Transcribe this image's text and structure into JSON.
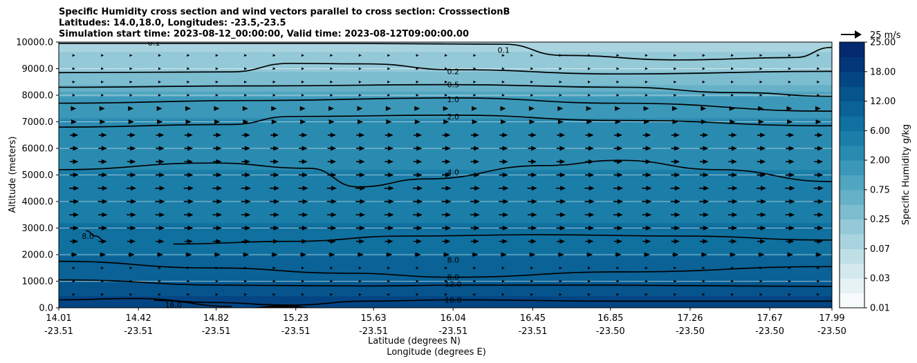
{
  "chart_data": {
    "type": "contourf-with-vectors",
    "title_lines": [
      "Specific Humidity cross section and wind vectors parallel to cross section: CrosssectionB",
      "Latitudes: 14.0,18.0, Longitudes: -23.5,-23.5",
      "Simulation start time: 2023-08-12_00:00:00, Valid time: 2023-08-12T09:00:00.00"
    ],
    "ylabel": "Altitude (meters)",
    "xlabel_lat": "Latitude (degrees N)",
    "xlabel_lon": "Longitude (degrees E)",
    "ylim": [
      0,
      10000
    ],
    "yticks": [
      "0.0",
      "1000.0",
      "2000.0",
      "3000.0",
      "4000.0",
      "5000.0",
      "6000.0",
      "7000.0",
      "8000.0",
      "9000.0",
      "10000.0"
    ],
    "xlim": [
      14.01,
      17.99
    ],
    "xticks": [
      {
        "lat": "14.01",
        "lon": "-23.51"
      },
      {
        "lat": "14.42",
        "lon": "-23.51"
      },
      {
        "lat": "14.82",
        "lon": "-23.51"
      },
      {
        "lat": "15.23",
        "lon": "-23.51"
      },
      {
        "lat": "15.63",
        "lon": "-23.51"
      },
      {
        "lat": "16.04",
        "lon": "-23.51"
      },
      {
        "lat": "16.45",
        "lon": "-23.51"
      },
      {
        "lat": "16.85",
        "lon": "-23.50"
      },
      {
        "lat": "17.26",
        "lon": "-23.50"
      },
      {
        "lat": "17.67",
        "lon": "-23.50"
      },
      {
        "lat": "17.99",
        "lon": "-23.50"
      }
    ],
    "colorbar": {
      "label": "Specific Humidity g/kg",
      "levels": [
        0.01,
        0.02,
        0.03,
        0.05,
        0.07,
        0.1,
        0.25,
        0.5,
        0.75,
        1.0,
        2.0,
        4.0,
        6.0,
        8.0,
        12.0,
        15.0,
        18.0,
        22.0,
        25.0
      ],
      "tick_labels": [
        "0.01",
        "0.03",
        "0.07",
        "0.25",
        "0.75",
        "2.00",
        "6.00",
        "12.00",
        "18.00",
        "25.00"
      ],
      "colors": [
        "#f7fbfc",
        "#e6f2f4",
        "#d3e9ee",
        "#bfdfe7",
        "#a9d4df",
        "#94c9d8",
        "#7dbdd0",
        "#66b1c8",
        "#50a5c0",
        "#3c98b8",
        "#2a8bb0",
        "#1b7ea8",
        "#10709f",
        "#0a6296",
        "#06548c",
        "#044583",
        "#033779",
        "#032a6f"
      ]
    },
    "humidity_profile": [
      {
        "alt": 0,
        "q": 18.0
      },
      {
        "alt": 300,
        "q": 16.0
      },
      {
        "alt": 800,
        "q": 13.0
      },
      {
        "alt": 1500,
        "q": 9.0
      },
      {
        "alt": 2500,
        "q": 7.0
      },
      {
        "alt": 4000,
        "q": 5.0
      },
      {
        "alt": 5200,
        "q": 4.0
      },
      {
        "alt": 6000,
        "q": 3.2
      },
      {
        "alt": 7000,
        "q": 2.2
      },
      {
        "alt": 7800,
        "q": 1.3
      },
      {
        "alt": 8300,
        "q": 0.6
      },
      {
        "alt": 8900,
        "q": 0.25
      },
      {
        "alt": 9500,
        "q": 0.12
      },
      {
        "alt": 10000,
        "q": 0.07
      }
    ],
    "contours": [
      {
        "label": "0.1",
        "points": [
          [
            14.01,
            9950
          ],
          [
            15.5,
            9950
          ],
          [
            16.0,
            9930
          ],
          [
            16.3,
            9920
          ]
        ],
        "label_at": [
          14.5,
          9980
        ]
      },
      {
        "label": "0.1",
        "points": [
          [
            16.3,
            9920
          ],
          [
            16.6,
            9500
          ],
          [
            17.2,
            9330
          ],
          [
            17.8,
            9420
          ],
          [
            17.99,
            9800
          ]
        ],
        "label_at": [
          16.3,
          9700
        ]
      },
      {
        "label": "0.2",
        "points": [
          [
            14.01,
            8850
          ],
          [
            14.9,
            8880
          ],
          [
            15.2,
            9200
          ],
          [
            15.6,
            9180
          ],
          [
            16.04,
            8960
          ],
          [
            16.9,
            8800
          ],
          [
            17.99,
            8900
          ]
        ],
        "label_at": [
          16.04,
          8900
        ]
      },
      {
        "label": "0.5",
        "points": [
          [
            14.01,
            8300
          ],
          [
            15.0,
            8350
          ],
          [
            16.04,
            8400
          ],
          [
            16.9,
            8300
          ],
          [
            17.5,
            8100
          ],
          [
            17.99,
            7960
          ]
        ],
        "label_at": [
          16.04,
          8400
        ]
      },
      {
        "label": "1.0",
        "points": [
          [
            14.01,
            7700
          ],
          [
            15.0,
            7800
          ],
          [
            16.04,
            7900
          ],
          [
            16.9,
            7700
          ],
          [
            17.99,
            7400
          ]
        ],
        "label_at": [
          16.04,
          7850
        ]
      },
      {
        "label": "2.0",
        "points": [
          [
            14.01,
            6800
          ],
          [
            14.9,
            6900
          ],
          [
            15.2,
            7200
          ],
          [
            16.04,
            7250
          ],
          [
            16.9,
            7050
          ],
          [
            17.99,
            6850
          ]
        ],
        "label_at": [
          16.04,
          7200
        ]
      },
      {
        "label": "4.0",
        "points": [
          [
            14.01,
            5200
          ],
          [
            14.8,
            5450
          ],
          [
            15.3,
            5250
          ],
          [
            15.55,
            4550
          ],
          [
            15.9,
            4850
          ],
          [
            16.5,
            5350
          ],
          [
            16.9,
            5550
          ],
          [
            17.4,
            5200
          ],
          [
            17.99,
            4750
          ]
        ],
        "label_at": [
          16.04,
          5100
        ]
      },
      {
        "label": "8.0",
        "points": [
          [
            14.15,
            2900
          ],
          [
            14.2,
            2700
          ],
          [
            14.25,
            2500
          ]
        ],
        "label_at": [
          14.16,
          2700
        ]
      },
      {
        "label": "8.0",
        "points": [
          [
            14.6,
            2400
          ],
          [
            15.2,
            2500
          ],
          [
            15.8,
            2700
          ],
          [
            16.5,
            2750
          ],
          [
            17.2,
            2700
          ],
          [
            17.99,
            2550
          ]
        ],
        "label_at": [
          16.04,
          1800
        ]
      },
      {
        "label": "8.0",
        "points": [
          [
            14.01,
            1750
          ],
          [
            14.8,
            1500
          ],
          [
            15.5,
            1300
          ],
          [
            16.04,
            1150
          ],
          [
            16.9,
            1350
          ],
          [
            17.99,
            1550
          ]
        ],
        "label_at": [
          16.04,
          1150
        ]
      },
      {
        "label": "12.0",
        "points": [
          [
            14.01,
            1050
          ],
          [
            14.9,
            850
          ],
          [
            15.6,
            820
          ],
          [
            16.04,
            850
          ],
          [
            16.9,
            850
          ],
          [
            17.99,
            800
          ]
        ],
        "label_at": [
          16.04,
          900
        ]
      },
      {
        "label": "16.0",
        "points": [
          [
            14.01,
            300
          ],
          [
            14.4,
            350
          ],
          [
            14.8,
            200
          ],
          [
            15.2,
            100
          ],
          [
            15.6,
            250
          ],
          [
            16.04,
            300
          ],
          [
            16.9,
            250
          ],
          [
            17.99,
            250
          ]
        ],
        "label_at": [
          16.04,
          300
        ]
      },
      {
        "label": "16.0",
        "points": [
          [
            14.5,
            280
          ],
          [
            14.9,
            50
          ]
        ],
        "label_at": [
          14.6,
          120
        ]
      }
    ],
    "dark_core": {
      "label": "18.0",
      "points": [
        [
          15.0,
          0
        ],
        [
          15.1,
          80
        ],
        [
          15.2,
          120
        ],
        [
          15.3,
          0
        ]
      ]
    },
    "quiver": {
      "reference_label": "25 m/s",
      "reference_speed": 25,
      "columns": 27,
      "levels": [
        {
          "alt": 9500,
          "speed": 1.2
        },
        {
          "alt": 9000,
          "speed": 1.4
        },
        {
          "alt": 8500,
          "speed": 2.0
        },
        {
          "alt": 8000,
          "speed": 2.5
        },
        {
          "alt": 7500,
          "speed": 3.0
        },
        {
          "alt": 7000,
          "speed": 4.0
        },
        {
          "alt": 6500,
          "speed": 8.0
        },
        {
          "alt": 6000,
          "speed": 8.5
        },
        {
          "alt": 5500,
          "speed": 8.5
        },
        {
          "alt": 5000,
          "speed": 9.0
        },
        {
          "alt": 4500,
          "speed": 10.0
        },
        {
          "alt": 4000,
          "speed": 10.0
        },
        {
          "alt": 3500,
          "speed": 9.5
        },
        {
          "alt": 3000,
          "speed": 9.0
        },
        {
          "alt": 2500,
          "speed": 8.0
        },
        {
          "alt": 2000,
          "speed": 5.5
        },
        {
          "alt": 1500,
          "speed": 2.0
        },
        {
          "alt": 1000,
          "speed": 1.0
        },
        {
          "alt": 500,
          "speed": 0.8
        }
      ]
    }
  }
}
